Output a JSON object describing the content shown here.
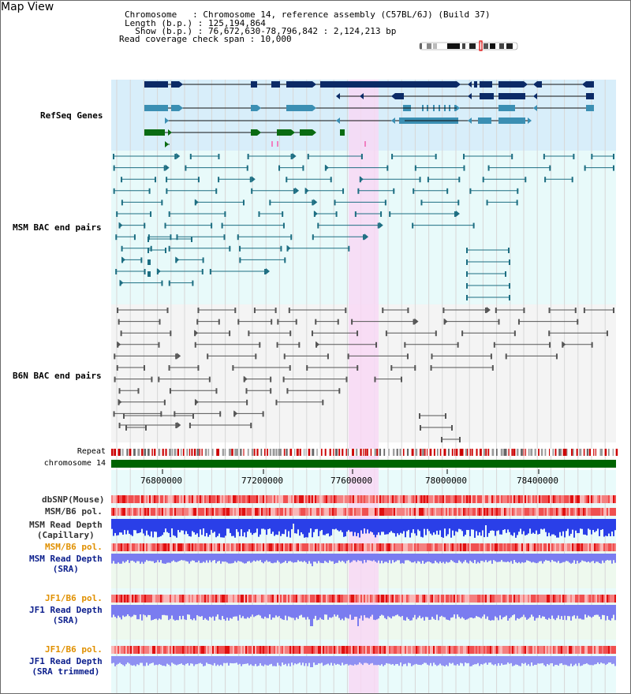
{
  "header": {
    "title": "Map View",
    "chromosome_key": "Chromosome",
    "chromosome_value": "Chromosome 14, reference assembly (C57BL/6J) (Build 37)",
    "length_key": "Length (b.p.)",
    "length_value": "125,194,864",
    "show_key": "Show (b.p.)",
    "show_value": "76,672,630-78,796,842 : 2,124,213 bp",
    "coverage_key": "Read coverage check span",
    "coverage_value": "10,000"
  },
  "colors": {
    "refseq_bg": "#d8eefa",
    "bac_bg": "#e8fafa",
    "b6n_bg": "#f4f4f4",
    "highlight": "#f8d8f4",
    "refseq_label": "#0b1e8c",
    "bac_label": "#006677",
    "b6n_label": "#444444",
    "orange_label": "#e09000",
    "chromosome_bar": "#006400",
    "depth_capillary": "#2a3fe8",
    "depth_sra": "#7a7cf0",
    "polymorphism": "#f06060"
  },
  "tracks": {
    "refseq": "RefSeq Genes",
    "msm_bac": "MSM BAC end pairs",
    "b6n_bac": "B6N BAC end pairs",
    "repeat": "Repeat",
    "chromosome": "chromosome 14",
    "dbsnp": "dbSNP(Mouse)",
    "msm_pol_1": "MSM/B6 pol.",
    "msm_depth_cap_1": "MSM Read Depth",
    "msm_depth_cap_2": "(Capillary)",
    "msm_pol_2": "MSM/B6 pol.",
    "msm_depth_sra_1": "MSM Read Depth",
    "msm_depth_sra_2": "(SRA)",
    "jf1_pol_1": "JF1/B6 pol.",
    "jf1_depth_1": "JF1 Read Depth",
    "jf1_depth_2": "(SRA)",
    "jf1_pol_2": "JF1/B6 pol.",
    "jf1_depth_trim_1": "JF1 Read Depth",
    "jf1_depth_trim_2": "(SRA trimmed)"
  },
  "axis_ticks": [
    "76800000",
    "77200000",
    "77600000",
    "78000000",
    "78400000"
  ]
}
